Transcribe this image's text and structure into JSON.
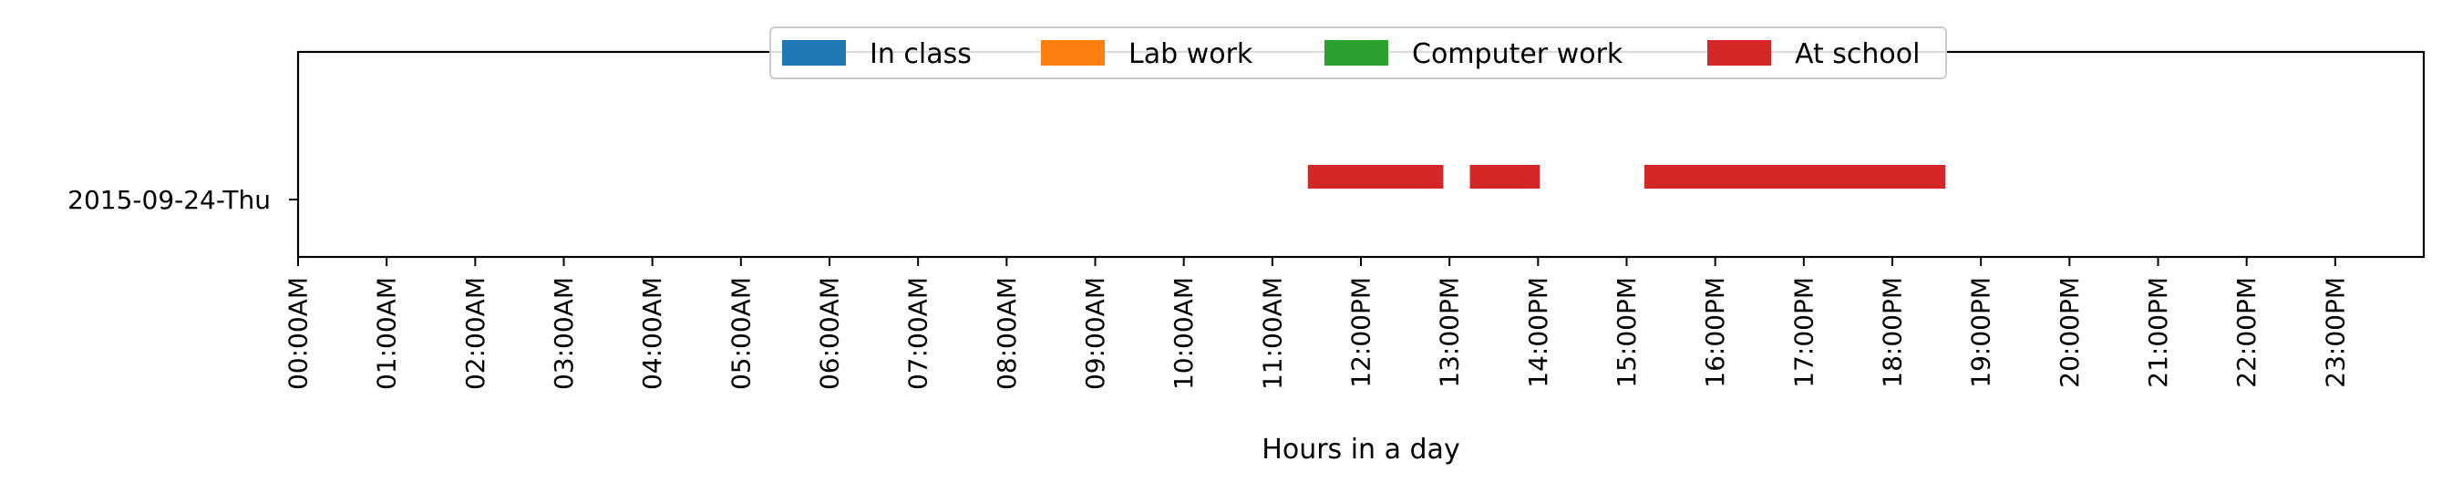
{
  "chart_data": {
    "type": "bar",
    "orientation": "horizontal-timeline",
    "xlabel": "Hours in a day",
    "ylabel": "",
    "xlim": [
      0,
      24
    ],
    "x_tick_values": [
      0,
      1,
      2,
      3,
      4,
      5,
      6,
      7,
      8,
      9,
      10,
      11,
      12,
      13,
      14,
      15,
      16,
      17,
      18,
      19,
      20,
      21,
      22,
      23
    ],
    "x_tick_labels": [
      "00:00AM",
      "01:00AM",
      "02:00AM",
      "03:00AM",
      "04:00AM",
      "05:00AM",
      "06:00AM",
      "07:00AM",
      "08:00AM",
      "09:00AM",
      "10:00AM",
      "11:00AM",
      "12:00PM",
      "13:00PM",
      "14:00PM",
      "15:00PM",
      "16:00PM",
      "17:00PM",
      "18:00PM",
      "19:00PM",
      "20:00PM",
      "21:00PM",
      "22:00PM",
      "23:00PM"
    ],
    "categories": [
      "2015-09-24-Thu"
    ],
    "legend_position": "top-center",
    "grid": false,
    "series": [
      {
        "name": "In class",
        "color": "#1f77b4",
        "intervals": []
      },
      {
        "name": "Lab work",
        "color": "#ff7f0e",
        "intervals": []
      },
      {
        "name": "Computer work",
        "color": "#2ca02c",
        "intervals": []
      },
      {
        "name": "At school",
        "color": "#d62728",
        "intervals": [
          {
            "category": "2015-09-24-Thu",
            "start": 11.4,
            "end": 12.93
          },
          {
            "category": "2015-09-24-Thu",
            "start": 13.23,
            "end": 14.02
          },
          {
            "category": "2015-09-24-Thu",
            "start": 15.2,
            "end": 18.6
          }
        ]
      }
    ]
  }
}
